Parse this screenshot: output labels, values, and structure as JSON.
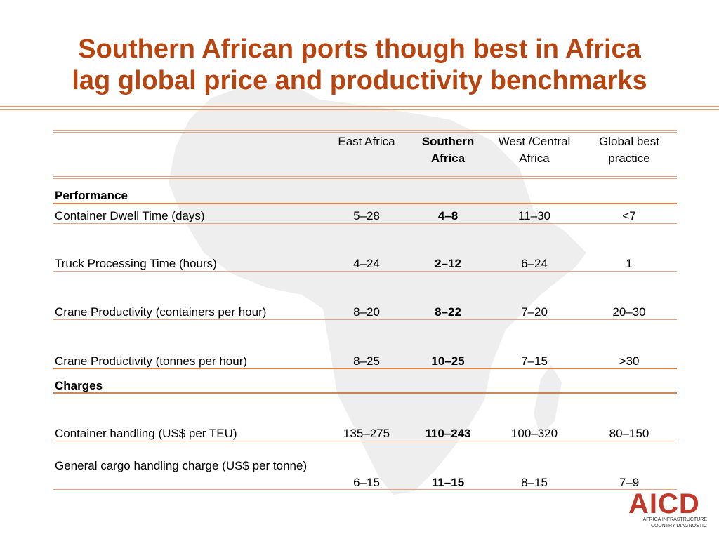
{
  "title": {
    "line1": "Southern African ports though best in Africa",
    "line2": "lag global price and productivity benchmarks"
  },
  "table": {
    "headers": [
      "East Africa",
      "Southern Africa",
      "West /Central Africa",
      "Global best practice"
    ],
    "sections": [
      {
        "label": "Performance",
        "rows": [
          {
            "label": "Container Dwell Time (days)",
            "values": [
              "5–28",
              "4–8",
              "11–30",
              "<7"
            ]
          },
          {
            "label": "Truck Processing Time (hours)",
            "values": [
              "4–24",
              "2–12",
              "6–24",
              "1"
            ]
          },
          {
            "label": "Crane Productivity (containers per hour)",
            "values": [
              "8–20",
              "8–22",
              "7–20",
              "20–30"
            ]
          },
          {
            "label": "Crane Productivity (tonnes per hour)",
            "values": [
              "8–25",
              "10–25",
              "7–15",
              ">30"
            ]
          }
        ]
      },
      {
        "label": "Charges",
        "rows": [
          {
            "label": "Container handling (US$ per TEU)",
            "values": [
              "135–275",
              "110–243",
              "100–320",
              "80–150"
            ]
          },
          {
            "label": "General cargo handling charge (US$ per tonne)",
            "values": [
              "6–15",
              "11–15",
              "8–15",
              "7–9"
            ]
          }
        ]
      }
    ]
  },
  "logo": {
    "text": "AICD",
    "line1": "AFRICA INFRASTRUCTURE",
    "line2": "COUNTRY DIAGNOSTIC"
  },
  "colors": {
    "title": "#b8450f",
    "rule": "#e67e3e",
    "logo": "#c0392b",
    "map": "#eeeeee"
  }
}
